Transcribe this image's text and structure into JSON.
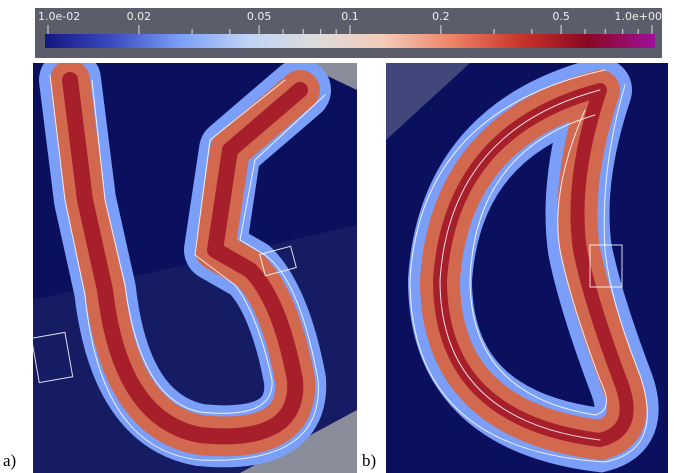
{
  "chart_data": {
    "type": "colorbar",
    "log_scale": true,
    "xlim": [
      0.01,
      1
    ],
    "xticks": [
      {
        "value": 0.01,
        "label": "1.0e-02"
      },
      0.02,
      0.05,
      0.1,
      0.2,
      0.5,
      {
        "value": 1,
        "label": "1.0e+00"
      }
    ],
    "minor_ticks": [
      0.03,
      0.04,
      0.06,
      0.07,
      0.08,
      0.09,
      0.3,
      0.4,
      0.6,
      0.7,
      0.8,
      0.9
    ],
    "colormap": [
      "#141682",
      "#3b4cc0",
      "#7b9ff9",
      "#c0d4f5",
      "#dddcdc",
      "#f2cbb7",
      "#ee8468",
      "#c9352c",
      "#8a0822",
      "#a0109a"
    ]
  },
  "panels": [
    {
      "label": "a)"
    },
    {
      "label": "b)"
    }
  ]
}
